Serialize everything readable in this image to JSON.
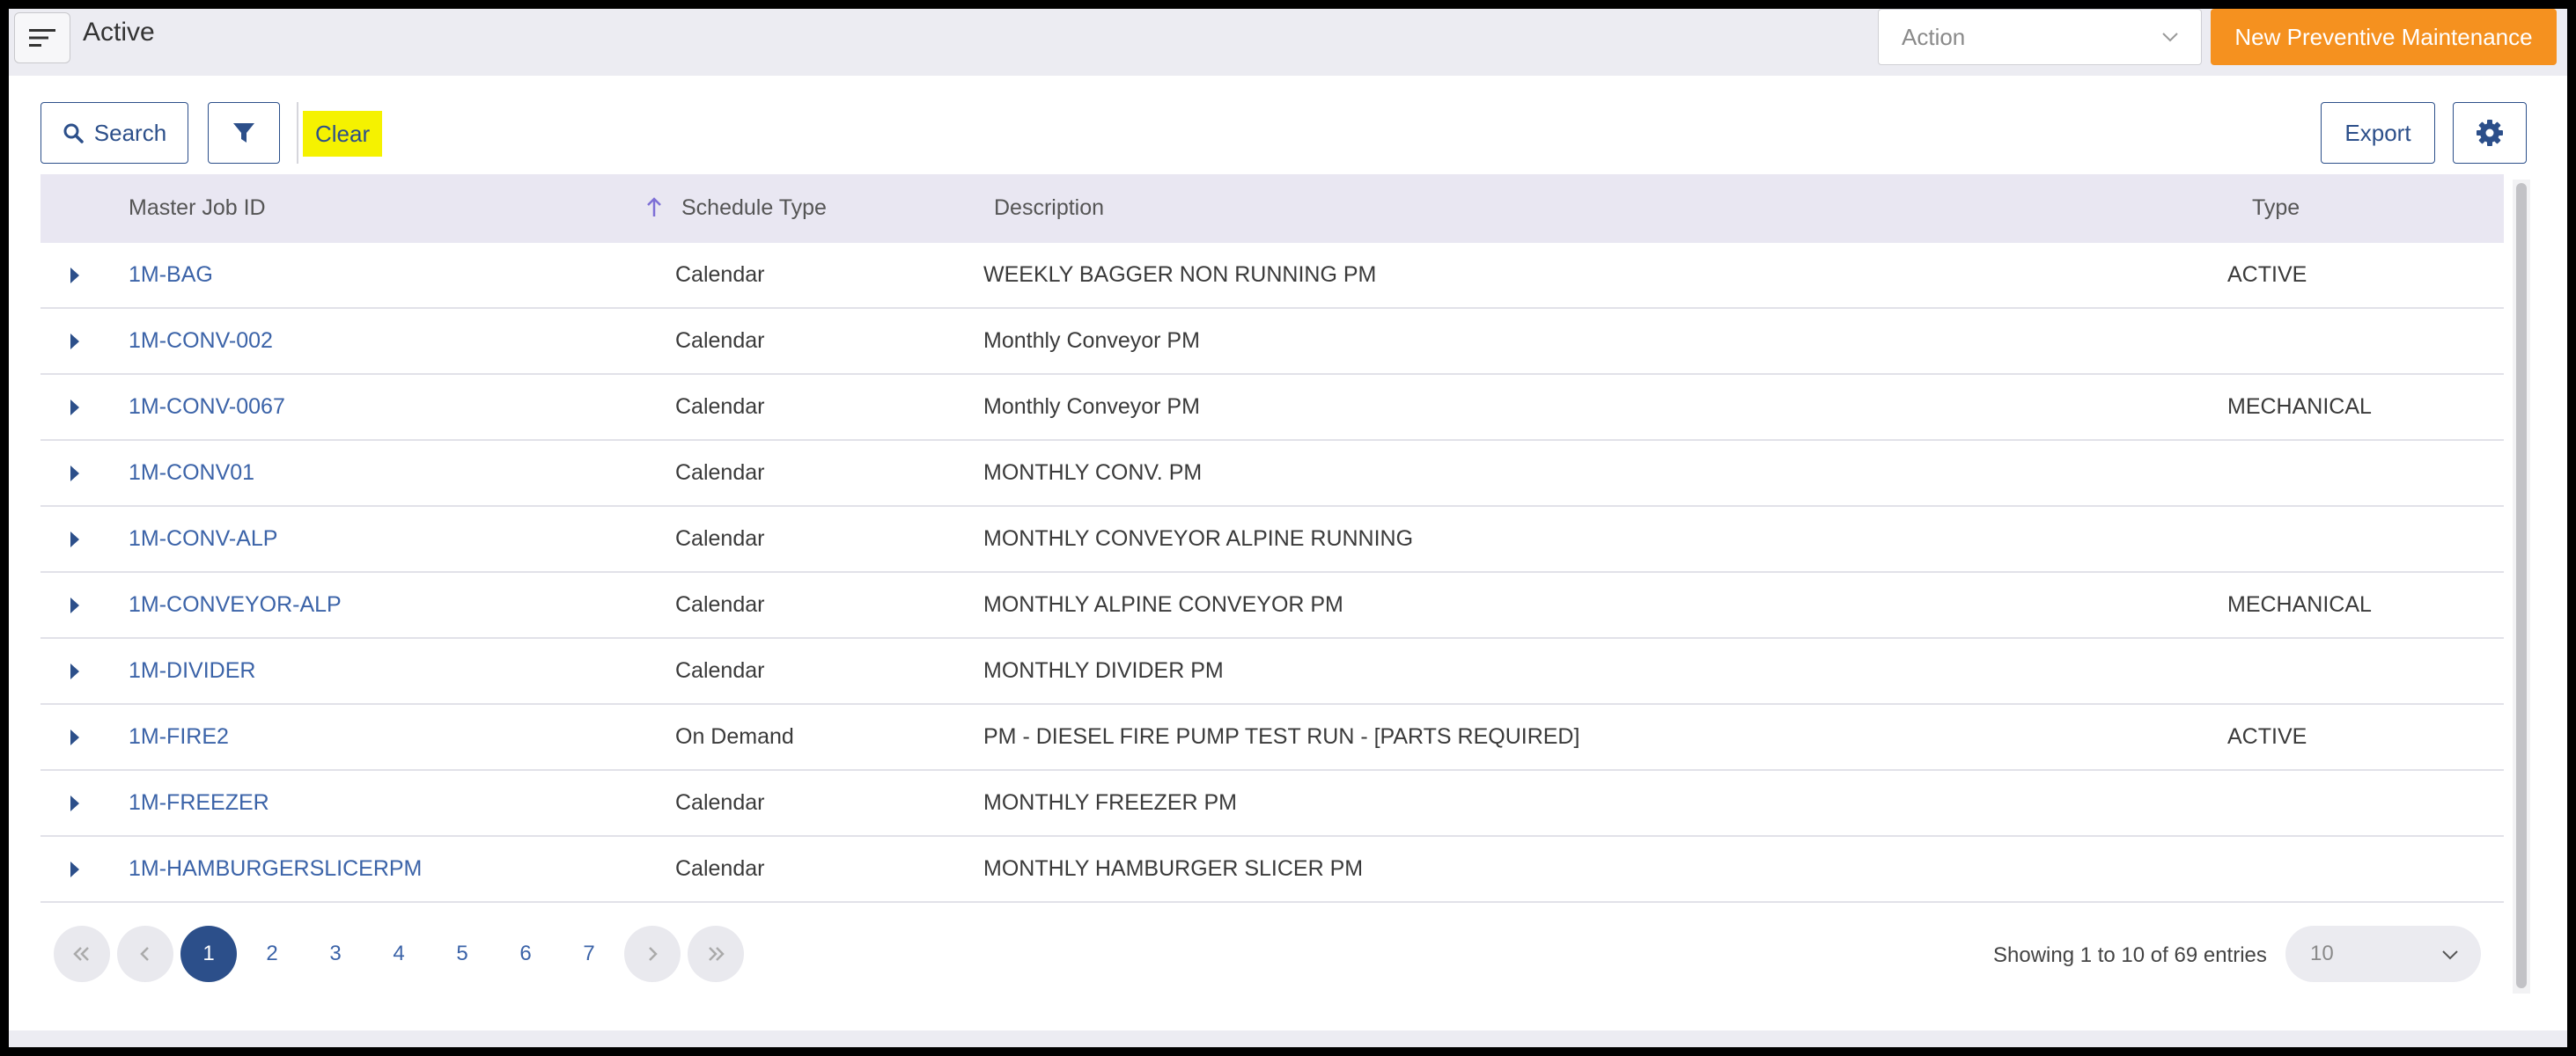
{
  "header": {
    "title": "Active",
    "action_placeholder": "Action",
    "new_button_label": "New Preventive Maintenance",
    "menu_icon": "hamburger-menu-icon"
  },
  "toolbar": {
    "search_label": "Search",
    "clear_label": "Clear",
    "export_label": "Export",
    "filter_icon": "funnel-icon",
    "settings_icon": "gear-icon"
  },
  "table": {
    "columns": {
      "master_job_id": "Master Job ID",
      "schedule_type": "Schedule Type",
      "description": "Description",
      "type": "Type"
    },
    "sort_column": "schedule_type",
    "rows": [
      {
        "id": "1M-BAG",
        "schedule": "Calendar",
        "description": "WEEKLY BAGGER NON RUNNING PM",
        "type": "ACTIVE"
      },
      {
        "id": "1M-CONV-002",
        "schedule": "Calendar",
        "description": "Monthly Conveyor PM",
        "type": ""
      },
      {
        "id": "1M-CONV-0067",
        "schedule": "Calendar",
        "description": "Monthly Conveyor PM",
        "type": "MECHANICAL"
      },
      {
        "id": "1M-CONV01",
        "schedule": "Calendar",
        "description": "MONTHLY CONV. PM",
        "type": ""
      },
      {
        "id": "1M-CONV-ALP",
        "schedule": "Calendar",
        "description": "MONTHLY CONVEYOR ALPINE RUNNING",
        "type": ""
      },
      {
        "id": "1M-CONVEYOR-ALP",
        "schedule": "Calendar",
        "description": "MONTHLY ALPINE CONVEYOR PM",
        "type": "MECHANICAL"
      },
      {
        "id": "1M-DIVIDER",
        "schedule": "Calendar",
        "description": "MONTHLY DIVIDER PM",
        "type": ""
      },
      {
        "id": "1M-FIRE2",
        "schedule": "On Demand",
        "description": "PM - DIESEL FIRE PUMP TEST RUN - [PARTS REQUIRED]",
        "type": "ACTIVE"
      },
      {
        "id": "1M-FREEZER",
        "schedule": "Calendar",
        "description": "MONTHLY FREEZER PM",
        "type": ""
      },
      {
        "id": "1M-HAMBURGERSLICERPM",
        "schedule": "Calendar",
        "description": "MONTHLY HAMBURGER SLICER PM",
        "type": ""
      }
    ]
  },
  "pagination": {
    "pages": [
      "1",
      "2",
      "3",
      "4",
      "5",
      "6",
      "7"
    ],
    "current_page": "1",
    "entries_info": "Showing 1 to 10 of 69 entries",
    "page_size": "10"
  },
  "colors": {
    "accent": "#f5911f",
    "primary": "#2c4f8a",
    "link": "#3b63a8",
    "highlight": "#f5f200"
  }
}
